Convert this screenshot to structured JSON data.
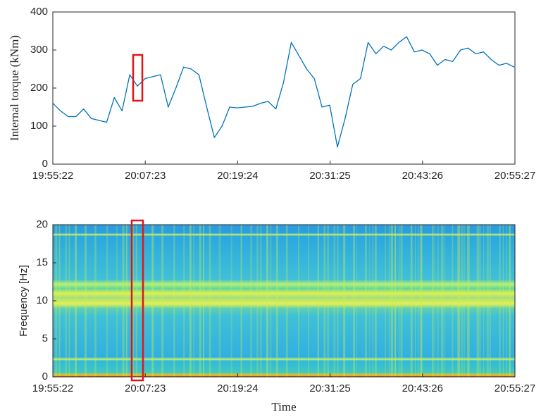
{
  "chart_data": [
    {
      "type": "line",
      "ylabel": "Internal torque (kNm)",
      "color": "#0072bd",
      "xlim": [
        "19:55:22",
        "20:55:27"
      ],
      "xticks": [
        "19:55:22",
        "20:07:23",
        "20:19:24",
        "20:31:25",
        "20:43:26",
        "20:55:27"
      ],
      "ylim": [
        0,
        400
      ],
      "yticks": [
        0,
        100,
        200,
        300,
        400
      ],
      "x": [
        "19:55:22",
        "19:56:22",
        "19:57:22",
        "19:58:22",
        "19:59:22",
        "20:00:22",
        "20:01:22",
        "20:02:22",
        "20:03:22",
        "20:04:22",
        "20:05:22",
        "20:06:22",
        "20:07:22",
        "20:08:22",
        "20:09:22",
        "20:10:22",
        "20:11:22",
        "20:12:22",
        "20:13:22",
        "20:14:22",
        "20:15:22",
        "20:16:22",
        "20:17:22",
        "20:18:22",
        "20:19:22",
        "20:20:22",
        "20:21:22",
        "20:22:22",
        "20:23:22",
        "20:24:22",
        "20:25:22",
        "20:26:22",
        "20:27:22",
        "20:28:22",
        "20:29:22",
        "20:30:22",
        "20:31:22",
        "20:32:22",
        "20:33:22",
        "20:34:22",
        "20:35:22",
        "20:36:22",
        "20:37:22",
        "20:38:22",
        "20:39:22",
        "20:40:22",
        "20:41:22",
        "20:42:22",
        "20:43:22",
        "20:44:22",
        "20:45:22",
        "20:46:22",
        "20:47:22",
        "20:48:22",
        "20:49:22",
        "20:50:22",
        "20:51:22",
        "20:52:22",
        "20:53:22",
        "20:54:22",
        "20:55:22"
      ],
      "values": [
        160,
        140,
        125,
        125,
        145,
        120,
        115,
        110,
        175,
        140,
        235,
        205,
        225,
        230,
        235,
        150,
        200,
        255,
        250,
        235,
        150,
        70,
        100,
        150,
        148,
        150,
        152,
        160,
        165,
        145,
        215,
        320,
        285,
        250,
        225,
        150,
        155,
        45,
        120,
        210,
        225,
        320,
        290,
        310,
        300,
        320,
        335,
        295,
        300,
        290,
        260,
        275,
        270,
        300,
        305,
        290,
        295,
        275,
        260,
        265,
        255
      ]
    },
    {
      "type": "spectrogram",
      "ylabel": "Frequency [Hz]",
      "xlabel": "Time",
      "xlim": [
        "19:55:22",
        "20:55:27"
      ],
      "xticks": [
        "19:55:22",
        "20:07:23",
        "20:19:24",
        "20:31:25",
        "20:43:26",
        "20:55:27"
      ],
      "ylim": [
        0,
        20
      ],
      "yticks": [
        0,
        5,
        10,
        15,
        20
      ]
    }
  ]
}
